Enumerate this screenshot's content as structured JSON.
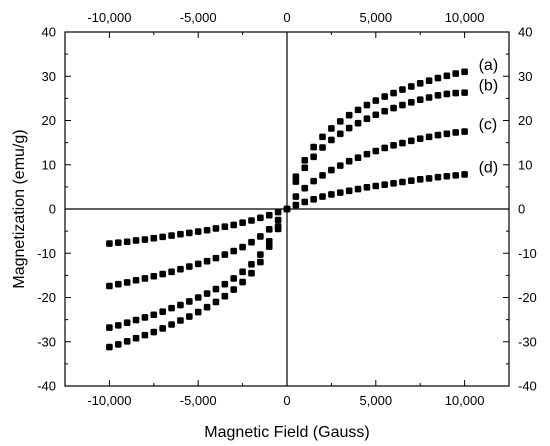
{
  "chart_data": {
    "type": "scatter",
    "title": "",
    "xlabel": "Magnetic Field (Gauss)",
    "ylabel": "Magnetization (emu/g)",
    "xlim": [
      -12500,
      12500
    ],
    "ylim": [
      -40,
      40
    ],
    "x_ticks": [
      -10000,
      -5000,
      0,
      5000,
      10000
    ],
    "x_tick_labels": [
      "-10,000",
      "-5,000",
      "0",
      "5,000",
      "10,000"
    ],
    "y_ticks": [
      -40,
      -30,
      -20,
      -10,
      0,
      10,
      20,
      30,
      40
    ],
    "y_tick_labels": [
      "-40",
      "-30",
      "-20",
      "-10",
      "0",
      "10",
      "20",
      "30",
      "40"
    ],
    "mirror_axes": true,
    "zero_lines": true,
    "grid": false,
    "marker": "square",
    "marker_color": "#000000",
    "series": [
      {
        "name": "(a)",
        "x": [
          -10000,
          -9500,
          -9000,
          -8500,
          -8000,
          -7500,
          -7000,
          -6500,
          -6000,
          -5500,
          -5000,
          -4500,
          -4000,
          -3500,
          -3000,
          -2500,
          -2000,
          -1500,
          -1000,
          -500,
          0,
          500,
          1000,
          1500,
          2000,
          2500,
          3000,
          3500,
          4000,
          4500,
          5000,
          5500,
          6000,
          6500,
          7000,
          7500,
          8000,
          8500,
          9000,
          9500,
          10000
        ],
        "y": [
          -31.2,
          -30.6,
          -29.9,
          -29.2,
          -28.5,
          -27.8,
          -27.0,
          -26.1,
          -25.2,
          -24.3,
          -23.3,
          -22.2,
          -21.0,
          -19.7,
          -18.2,
          -16.5,
          -14.5,
          -12.0,
          -8.5,
          -4.5,
          0,
          7.3,
          11.0,
          14.0,
          16.3,
          18.2,
          19.8,
          21.2,
          22.4,
          23.5,
          24.5,
          25.4,
          26.2,
          27.0,
          27.7,
          28.4,
          29.0,
          29.6,
          30.1,
          30.6,
          31.0
        ]
      },
      {
        "name": "(b)",
        "x": [
          -10000,
          -9500,
          -9000,
          -8500,
          -8000,
          -7500,
          -7000,
          -6500,
          -6000,
          -5500,
          -5000,
          -4500,
          -4000,
          -3500,
          -3000,
          -2500,
          -2000,
          -1500,
          -1000,
          -500,
          0,
          500,
          1000,
          1500,
          2000,
          2500,
          3000,
          3500,
          4000,
          4500,
          5000,
          5500,
          6000,
          6500,
          7000,
          7500,
          8000,
          8500,
          9000,
          9500,
          10000
        ],
        "y": [
          -26.8,
          -26.3,
          -25.7,
          -25.1,
          -24.5,
          -23.9,
          -23.2,
          -22.4,
          -21.7,
          -20.9,
          -20.0,
          -19.1,
          -18.1,
          -17.0,
          -15.7,
          -14.2,
          -12.5,
          -10.3,
          -7.3,
          -4.0,
          0,
          6.2,
          9.3,
          11.8,
          13.9,
          15.6,
          17.0,
          18.3,
          19.4,
          20.4,
          21.3,
          22.1,
          22.8,
          23.5,
          24.1,
          24.7,
          25.2,
          25.7,
          26.0,
          26.2,
          26.3
        ]
      },
      {
        "name": "(c)",
        "x": [
          -10000,
          -9500,
          -9000,
          -8500,
          -8000,
          -7500,
          -7000,
          -6500,
          -6000,
          -5500,
          -5000,
          -4500,
          -4000,
          -3500,
          -3000,
          -2500,
          -2000,
          -1500,
          -1000,
          -500,
          0,
          500,
          1000,
          1500,
          2000,
          2500,
          3000,
          3500,
          4000,
          4500,
          5000,
          5500,
          6000,
          6500,
          7000,
          7500,
          8000,
          8500,
          9000,
          9500,
          10000
        ],
        "y": [
          -17.4,
          -17.0,
          -16.6,
          -16.1,
          -15.7,
          -15.2,
          -14.7,
          -14.2,
          -13.6,
          -13.0,
          -12.4,
          -11.8,
          -11.1,
          -10.3,
          -9.5,
          -8.6,
          -7.5,
          -6.2,
          -4.6,
          -2.5,
          0,
          2.8,
          4.7,
          6.3,
          7.6,
          8.8,
          9.8,
          10.8,
          11.6,
          12.4,
          13.1,
          13.8,
          14.4,
          14.9,
          15.4,
          15.9,
          16.3,
          16.7,
          17.0,
          17.3,
          17.5
        ]
      },
      {
        "name": "(d)",
        "x": [
          -10000,
          -9500,
          -9000,
          -8500,
          -8000,
          -7500,
          -7000,
          -6500,
          -6000,
          -5500,
          -5000,
          -4500,
          -4000,
          -3500,
          -3000,
          -2500,
          -2000,
          -1500,
          -1000,
          -500,
          0,
          500,
          1000,
          1500,
          2000,
          2500,
          3000,
          3500,
          4000,
          4500,
          5000,
          5500,
          6000,
          6500,
          7000,
          7500,
          8000,
          8500,
          9000,
          9500,
          10000
        ],
        "y": [
          -7.8,
          -7.6,
          -7.4,
          -7.1,
          -6.9,
          -6.6,
          -6.3,
          -6.0,
          -5.7,
          -5.4,
          -5.1,
          -4.8,
          -4.4,
          -4.0,
          -3.6,
          -3.1,
          -2.6,
          -2.0,
          -1.4,
          -0.7,
          0,
          0.9,
          1.6,
          2.2,
          2.8,
          3.3,
          3.7,
          4.1,
          4.5,
          4.9,
          5.2,
          5.5,
          5.8,
          6.1,
          6.4,
          6.7,
          6.9,
          7.2,
          7.4,
          7.6,
          7.8
        ]
      }
    ]
  }
}
